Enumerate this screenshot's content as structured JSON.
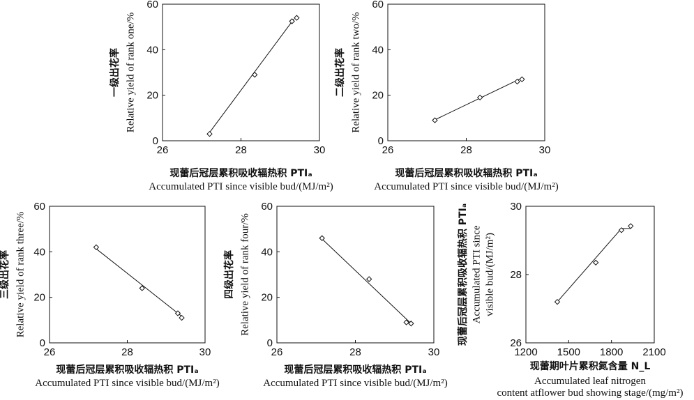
{
  "chart_data": [
    {
      "type": "scatter",
      "xlabel_cn": "现蕾后冠层累积吸收辐热积 PTIₐ",
      "xlabel_en": "Accumulated PTI since visible bud/(MJ/m²)",
      "ylabel_cn": "一级出花率",
      "ylabel_en": "Relative yield of rank one/%",
      "xlim": [
        26,
        30
      ],
      "ylim": [
        0,
        60
      ],
      "xticks": [
        "26",
        "28",
        "30"
      ],
      "yticks": [
        "0",
        "20",
        "40",
        "60"
      ],
      "points": [
        {
          "x": 27.2,
          "y": 3
        },
        {
          "x": 28.35,
          "y": 29
        },
        {
          "x": 29.3,
          "y": 52.5
        },
        {
          "x": 29.42,
          "y": 54
        }
      ],
      "fit_line": [
        {
          "x": 27.15,
          "y": 2.5
        },
        {
          "x": 29.35,
          "y": 53.5
        }
      ]
    },
    {
      "type": "scatter",
      "xlabel_cn": "现蕾后冠层累积吸收辐热积 PTIₐ",
      "xlabel_en": "Accumulated PTI since visible bud/(MJ/m²)",
      "ylabel_cn": "二级出花率",
      "ylabel_en": "Relative yield of rank two/%",
      "xlim": [
        26,
        30
      ],
      "ylim": [
        0,
        60
      ],
      "xticks": [
        "26",
        "28",
        "30"
      ],
      "yticks": [
        "0",
        "20",
        "40",
        "60"
      ],
      "points": [
        {
          "x": 27.2,
          "y": 9
        },
        {
          "x": 28.35,
          "y": 19
        },
        {
          "x": 29.3,
          "y": 26
        },
        {
          "x": 29.42,
          "y": 27
        }
      ],
      "fit_line": [
        {
          "x": 27.15,
          "y": 8.8
        },
        {
          "x": 29.35,
          "y": 27
        }
      ]
    },
    {
      "type": "scatter",
      "xlabel_cn": "现蕾后冠层累积吸收辐热积 PTIₐ",
      "xlabel_en": "Accumulated PTI since visible bud/(MJ/m²)",
      "ylabel_cn": "三级出花率",
      "ylabel_en": "Relative yield of rank three/%",
      "xlim": [
        26,
        30
      ],
      "ylim": [
        0,
        60
      ],
      "xticks": [
        "26",
        "28",
        "30"
      ],
      "yticks": [
        "0",
        "20",
        "40",
        "60"
      ],
      "points": [
        {
          "x": 27.2,
          "y": 42
        },
        {
          "x": 28.38,
          "y": 24
        },
        {
          "x": 29.3,
          "y": 13
        },
        {
          "x": 29.4,
          "y": 11
        }
      ],
      "fit_line": [
        {
          "x": 27.15,
          "y": 42
        },
        {
          "x": 29.45,
          "y": 11
        }
      ]
    },
    {
      "type": "scatter",
      "xlabel_cn": "现蕾后冠层累积吸收辐热积 PTIₐ",
      "xlabel_en": "Accumulated PTI since visible bud/(MJ/m²)",
      "ylabel_cn": "四级出花率",
      "ylabel_en": "Relative yield of rank four/%",
      "xlim": [
        26,
        30
      ],
      "ylim": [
        0,
        60
      ],
      "xticks": [
        "26",
        "28",
        "30"
      ],
      "yticks": [
        "0",
        "20",
        "40",
        "60"
      ],
      "points": [
        {
          "x": 27.15,
          "y": 46
        },
        {
          "x": 28.35,
          "y": 28
        },
        {
          "x": 29.3,
          "y": 9
        },
        {
          "x": 29.42,
          "y": 8.5
        }
      ],
      "fit_line": [
        {
          "x": 27.1,
          "y": 46.5
        },
        {
          "x": 29.45,
          "y": 8
        }
      ]
    },
    {
      "type": "scatter",
      "xlabel_cn": "现蕾期叶片累积氮含量 N_L",
      "xlabel_en_1": "Accumulated leaf nitrogen",
      "xlabel_en_2": "content atflower bud showing stage/(mg/m²)",
      "ylabel_cn": "现蕾后冠层累积吸收辐热积 PTIₐ",
      "ylabel_en_1": "Accumulated PTI since",
      "ylabel_en_2": "visible bud/(MJ/m²)",
      "xlim": [
        1200,
        2100
      ],
      "ylim": [
        26,
        30
      ],
      "xticks": [
        "1200",
        "1500",
        "1800",
        "2100"
      ],
      "yticks": [
        "26",
        "28",
        "30"
      ],
      "points": [
        {
          "x": 1420,
          "y": 27.2
        },
        {
          "x": 1690,
          "y": 28.35
        },
        {
          "x": 1870,
          "y": 29.3
        },
        {
          "x": 1935,
          "y": 29.42
        }
      ],
      "fit_line": [
        {
          "x": 1420,
          "y": 27.2
        },
        {
          "x": 1870,
          "y": 29.35
        },
        {
          "x": 1935,
          "y": 29.35
        }
      ]
    }
  ]
}
